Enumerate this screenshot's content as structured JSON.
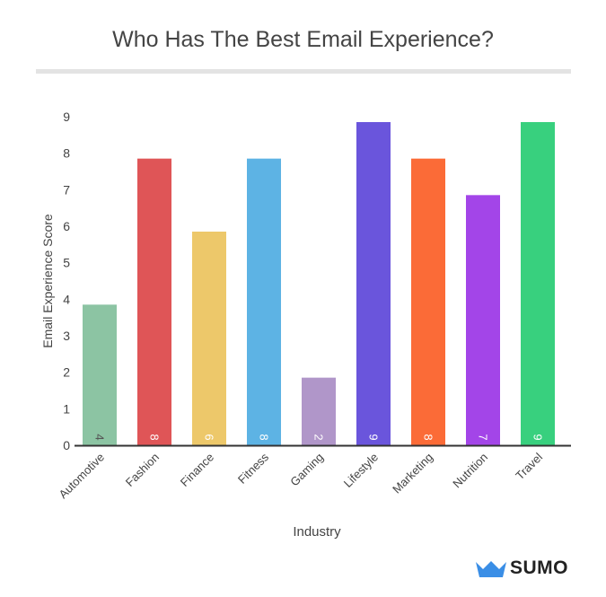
{
  "colors": {
    "axis": "#333333",
    "text": "#444444",
    "bar_colors": [
      "#8cc4a3",
      "#df5557",
      "#edc86a",
      "#5db3e4",
      "#b096c9",
      "#6a55dc",
      "#fb6b37",
      "#a345e8",
      "#38d07e"
    ],
    "label_color": "#555555",
    "logo_blue": "#3a8ee6"
  },
  "brand": {
    "name": "SUMO",
    "icon": "crown-icon"
  },
  "chart_data": {
    "type": "bar",
    "title": "Who Has The Best Email Experience?",
    "xlabel": "Industry",
    "ylabel": "Email Experience Score",
    "categories": [
      "Automotive",
      "Fashion",
      "Finance",
      "Fitness",
      "Gaming",
      "Lifestyle",
      "Marketing",
      "Nutrition",
      "Travel"
    ],
    "values": [
      4,
      8,
      6,
      8,
      2,
      9,
      8,
      7,
      9
    ],
    "data_labels": [
      "4",
      "8",
      "6",
      "8",
      "2",
      "9",
      "8",
      "7",
      "9"
    ],
    "yticks": [
      0,
      1,
      2,
      3,
      4,
      5,
      6,
      7,
      8,
      9
    ],
    "ylim": [
      0,
      9
    ],
    "grid": false,
    "legend": "none"
  }
}
